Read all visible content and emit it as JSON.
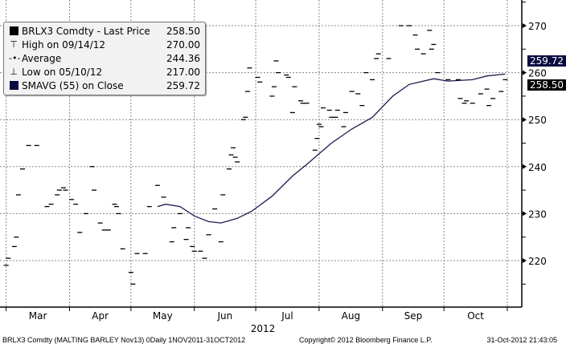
{
  "legend": {
    "rows": [
      {
        "label": "BRLX3 Comdty - Last Price",
        "value": "258.50",
        "icon": "black-square"
      },
      {
        "label": "High on 09/14/12",
        "value": "270.00",
        "icon": "high-marker"
      },
      {
        "label": "Average",
        "value": "244.36",
        "icon": "average-marker"
      },
      {
        "label": "Low on 05/10/12",
        "value": "217.00",
        "icon": "low-marker"
      },
      {
        "label": "SMAVG (55) on Close",
        "value": "259.72",
        "icon": "navy-square"
      }
    ]
  },
  "footer": {
    "security": "BRLX3 Comdty (MALTING BARLEY   Nov13) 0Daily 1NOV2011-31OCT2012",
    "copyright": "Copyright© 2012 Bloomberg Finance L.P.",
    "timestamp": "31-Oct-2012 21:43:05"
  },
  "flags": {
    "sma": "259.72",
    "last": "258.50"
  },
  "colors": {
    "price": "#000000",
    "sma": "#1a1a4e",
    "grid": "#888888",
    "last_flag": "#000000",
    "sma_flag": "#0a0a40"
  },
  "chart_data": {
    "type": "line",
    "title": "",
    "xlabel": "2012",
    "ylabel": "",
    "x_tick_labels": [
      "Mar",
      "Apr",
      "May",
      "Jun",
      "Jul",
      "Aug",
      "Sep",
      "Oct"
    ],
    "y_tick_labels": [
      "220",
      "230",
      "240",
      "250",
      "260",
      "270"
    ],
    "ylim": [
      212,
      277
    ],
    "xlim": [
      "2012-02-27",
      "2012-11-01"
    ],
    "grid": true,
    "y_axis_side": "right",
    "legend_position": "top-left",
    "series": [
      {
        "name": "BRLX3 Comdty - Last Price",
        "style": "price-ticks",
        "points": [
          [
            "2012-03-01",
            219
          ],
          [
            "2012-03-02",
            220.5
          ],
          [
            "2012-03-05",
            223
          ],
          [
            "2012-03-06",
            225
          ],
          [
            "2012-03-07",
            234
          ],
          [
            "2012-03-09",
            239.5
          ],
          [
            "2012-03-12",
            244.5
          ],
          [
            "2012-03-16",
            244.5
          ],
          [
            "2012-03-21",
            231.5
          ],
          [
            "2012-03-23",
            232
          ],
          [
            "2012-03-26",
            234
          ],
          [
            "2012-03-27",
            235
          ],
          [
            "2012-03-29",
            235.5
          ],
          [
            "2012-03-30",
            235
          ],
          [
            "2012-04-02",
            233
          ],
          [
            "2012-04-04",
            232
          ],
          [
            "2012-04-06",
            226
          ],
          [
            "2012-04-09",
            230
          ],
          [
            "2012-04-12",
            240
          ],
          [
            "2012-04-13",
            235
          ],
          [
            "2012-04-16",
            228
          ],
          [
            "2012-04-18",
            226.5
          ],
          [
            "2012-04-20",
            226.5
          ],
          [
            "2012-04-23",
            232
          ],
          [
            "2012-04-24",
            231.5
          ],
          [
            "2012-04-25",
            230
          ],
          [
            "2012-04-27",
            222.5
          ],
          [
            "2012-05-01",
            217.5
          ],
          [
            "2012-05-02",
            215
          ],
          [
            "2012-05-04",
            221.5
          ],
          [
            "2012-05-08",
            221.5
          ],
          [
            "2012-05-10",
            231.5
          ],
          [
            "2012-05-14",
            236
          ],
          [
            "2012-05-17",
            233.5
          ],
          [
            "2012-05-21",
            224
          ],
          [
            "2012-05-22",
            227
          ],
          [
            "2012-05-25",
            230
          ],
          [
            "2012-05-28",
            224.5
          ],
          [
            "2012-05-29",
            227
          ],
          [
            "2012-05-31",
            223
          ],
          [
            "2012-06-01",
            222
          ],
          [
            "2012-06-04",
            222
          ],
          [
            "2012-06-06",
            220.5
          ],
          [
            "2012-06-08",
            225.5
          ],
          [
            "2012-06-11",
            231
          ],
          [
            "2012-06-14",
            224
          ],
          [
            "2012-06-15",
            234
          ],
          [
            "2012-06-18",
            239.5
          ],
          [
            "2012-06-19",
            242.5
          ],
          [
            "2012-06-20",
            244
          ],
          [
            "2012-06-21",
            242
          ],
          [
            "2012-06-22",
            241
          ],
          [
            "2012-06-25",
            250
          ],
          [
            "2012-06-26",
            250.5
          ],
          [
            "2012-06-27",
            256
          ],
          [
            "2012-06-28",
            261
          ],
          [
            "2012-07-02",
            259
          ],
          [
            "2012-07-03",
            258
          ],
          [
            "2012-07-09",
            255
          ],
          [
            "2012-07-10",
            257
          ],
          [
            "2012-07-11",
            262.5
          ],
          [
            "2012-07-12",
            260
          ],
          [
            "2012-07-16",
            259.5
          ],
          [
            "2012-07-17",
            259
          ],
          [
            "2012-07-19",
            251.5
          ],
          [
            "2012-07-20",
            257
          ],
          [
            "2012-07-23",
            254
          ],
          [
            "2012-07-24",
            253.5
          ],
          [
            "2012-07-26",
            253.5
          ],
          [
            "2012-07-30",
            243.5
          ],
          [
            "2012-07-31",
            246
          ],
          [
            "2012-08-01",
            249
          ],
          [
            "2012-08-02",
            248.5
          ],
          [
            "2012-08-03",
            252.5
          ],
          [
            "2012-08-06",
            252
          ],
          [
            "2012-08-07",
            250.5
          ],
          [
            "2012-08-09",
            250.5
          ],
          [
            "2012-08-10",
            252
          ],
          [
            "2012-08-13",
            248.5
          ],
          [
            "2012-08-14",
            251.5
          ],
          [
            "2012-08-17",
            256
          ],
          [
            "2012-08-20",
            255.5
          ],
          [
            "2012-08-22",
            253
          ],
          [
            "2012-08-24",
            260
          ],
          [
            "2012-08-27",
            258.5
          ],
          [
            "2012-08-29",
            263
          ],
          [
            "2012-08-30",
            264
          ],
          [
            "2012-09-04",
            263
          ],
          [
            "2012-09-10",
            270
          ],
          [
            "2012-09-14",
            270
          ],
          [
            "2012-09-17",
            268
          ],
          [
            "2012-09-18",
            265
          ],
          [
            "2012-09-21",
            264
          ],
          [
            "2012-09-24",
            269
          ],
          [
            "2012-09-25",
            265
          ],
          [
            "2012-09-26",
            266
          ],
          [
            "2012-09-28",
            260
          ],
          [
            "2012-10-03",
            258.5
          ],
          [
            "2012-10-08",
            258.5
          ],
          [
            "2012-10-09",
            254.5
          ],
          [
            "2012-10-11",
            253.5
          ],
          [
            "2012-10-12",
            254
          ],
          [
            "2012-10-15",
            253.5
          ],
          [
            "2012-10-19",
            255.5
          ],
          [
            "2012-10-22",
            256.5
          ],
          [
            "2012-10-23",
            253
          ],
          [
            "2012-10-25",
            254.5
          ],
          [
            "2012-10-29",
            256
          ],
          [
            "2012-10-31",
            258.5
          ]
        ]
      },
      {
        "name": "SMAVG (55) on Close",
        "style": "line",
        "points": [
          [
            "2012-05-14",
            231.5
          ],
          [
            "2012-05-18",
            232
          ],
          [
            "2012-05-25",
            231.5
          ],
          [
            "2012-06-01",
            229.5
          ],
          [
            "2012-06-08",
            228.3
          ],
          [
            "2012-06-14",
            228
          ],
          [
            "2012-06-22",
            229
          ],
          [
            "2012-06-29",
            230.5
          ],
          [
            "2012-07-09",
            233.7
          ],
          [
            "2012-07-19",
            238
          ],
          [
            "2012-07-26",
            240.5
          ],
          [
            "2012-08-07",
            245
          ],
          [
            "2012-08-17",
            248
          ],
          [
            "2012-08-27",
            250.5
          ],
          [
            "2012-09-06",
            255
          ],
          [
            "2012-09-14",
            257.5
          ],
          [
            "2012-09-26",
            258.7
          ],
          [
            "2012-10-03",
            258.2
          ],
          [
            "2012-10-15",
            258.5
          ],
          [
            "2012-10-22",
            259.3
          ],
          [
            "2012-10-31",
            259.7
          ]
        ]
      }
    ]
  }
}
